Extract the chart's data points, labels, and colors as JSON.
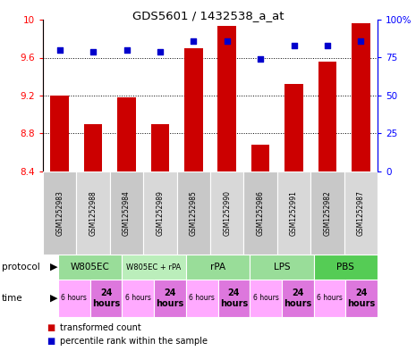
{
  "title": "GDS5601 / 1432538_a_at",
  "samples": [
    "GSM1252983",
    "GSM1252988",
    "GSM1252984",
    "GSM1252989",
    "GSM1252985",
    "GSM1252990",
    "GSM1252986",
    "GSM1252991",
    "GSM1252982",
    "GSM1252987"
  ],
  "bar_values": [
    9.2,
    8.9,
    9.18,
    8.9,
    9.7,
    9.93,
    8.68,
    9.32,
    9.56,
    9.96
  ],
  "percentile_values": [
    80,
    79,
    80,
    79,
    86,
    86,
    74,
    83,
    83,
    86
  ],
  "ylim_left": [
    8.4,
    10.0
  ],
  "ylim_right": [
    0,
    100
  ],
  "yticks_left": [
    8.4,
    8.8,
    9.2,
    9.6,
    10.0
  ],
  "ytick_labels_left": [
    "8.4",
    "8.8",
    "9.2",
    "9.6",
    "10"
  ],
  "yticks_right": [
    0,
    25,
    50,
    75,
    100
  ],
  "ytick_labels_right": [
    "0",
    "25",
    "50",
    "75",
    "100%"
  ],
  "grid_values": [
    8.8,
    9.2,
    9.6
  ],
  "bar_color": "#cc0000",
  "dot_color": "#0000cc",
  "bar_width": 0.55,
  "protocols": [
    {
      "label": "W805EC",
      "start": 0,
      "end": 2,
      "color": "#99dd99"
    },
    {
      "label": "W805EC + rPA",
      "start": 2,
      "end": 4,
      "color": "#bbeebb"
    },
    {
      "label": "rPA",
      "start": 4,
      "end": 6,
      "color": "#99dd99"
    },
    {
      "label": "LPS",
      "start": 6,
      "end": 8,
      "color": "#99dd99"
    },
    {
      "label": "PBS",
      "start": 8,
      "end": 10,
      "color": "#55cc55"
    }
  ],
  "times": [
    {
      "label": "6 hours",
      "start": 0,
      "end": 1,
      "color": "#ffaaff",
      "bold": false
    },
    {
      "label": "24\nhours",
      "start": 1,
      "end": 2,
      "color": "#dd77dd",
      "bold": true
    },
    {
      "label": "6 hours",
      "start": 2,
      "end": 3,
      "color": "#ffaaff",
      "bold": false
    },
    {
      "label": "24\nhours",
      "start": 3,
      "end": 4,
      "color": "#dd77dd",
      "bold": true
    },
    {
      "label": "6 hours",
      "start": 4,
      "end": 5,
      "color": "#ffaaff",
      "bold": false
    },
    {
      "label": "24\nhours",
      "start": 5,
      "end": 6,
      "color": "#dd77dd",
      "bold": true
    },
    {
      "label": "6 hours",
      "start": 6,
      "end": 7,
      "color": "#ffaaff",
      "bold": false
    },
    {
      "label": "24\nhours",
      "start": 7,
      "end": 8,
      "color": "#dd77dd",
      "bold": true
    },
    {
      "label": "6 hours",
      "start": 8,
      "end": 9,
      "color": "#ffaaff",
      "bold": false
    },
    {
      "label": "24\nhours",
      "start": 9,
      "end": 10,
      "color": "#dd77dd",
      "bold": true
    }
  ],
  "legend_items": [
    {
      "label": "transformed count",
      "color": "#cc0000"
    },
    {
      "label": "percentile rank within the sample",
      "color": "#0000cc"
    }
  ],
  "fig_width": 4.65,
  "fig_height": 3.93,
  "dpi": 100
}
